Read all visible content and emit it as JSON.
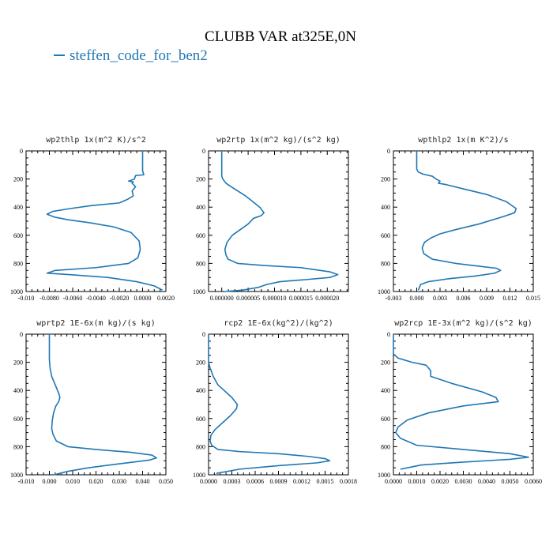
{
  "title": "CLUBB VAR at325E,0N",
  "legend": {
    "label": "steffen_code_for_ben2",
    "color": "#1f77b4"
  },
  "chart_data": [
    {
      "type": "line",
      "title": "wp2thlp  1x(m^2 K)/s^2",
      "xlim": [
        -0.01,
        0.002
      ],
      "ylim": [
        1000,
        0
      ],
      "yticks": [
        0,
        200,
        400,
        600,
        800,
        1000
      ],
      "xticks": [
        -0.01,
        -0.008,
        -0.006,
        -0.004,
        -0.002,
        0.0,
        0.002
      ],
      "xtick_labels": [
        "-0.010",
        "-0.0080",
        "-0.0060",
        "-0.0040",
        "-0.0020",
        "0.0000",
        "0.0020"
      ],
      "series": [
        {
          "x": [
            0.0,
            0.0,
            0.0001,
            -0.0006,
            -0.0007,
            -0.0012,
            -0.0008,
            -0.0009,
            -0.0006,
            -0.0009,
            -0.0008,
            -0.0013,
            -0.002,
            -0.0045,
            -0.0062,
            -0.0077,
            -0.0082,
            -0.0076,
            -0.0064,
            -0.0046,
            -0.0025,
            -0.001,
            -0.0003,
            -0.0002,
            -0.0004,
            -0.0012,
            -0.004,
            -0.0075,
            -0.0082,
            -0.0062,
            -0.003,
            -0.0005,
            0.001,
            0.0017
          ],
          "y": [
            0,
            140,
            170,
            175,
            200,
            215,
            220,
            230,
            255,
            285,
            320,
            345,
            370,
            390,
            410,
            430,
            450,
            470,
            490,
            510,
            540,
            580,
            640,
            700,
            760,
            800,
            830,
            850,
            870,
            880,
            900,
            930,
            960,
            990
          ]
        }
      ]
    },
    {
      "type": "line",
      "title": "wp2rtp  1x(m^2 kg)/(s^2 kg)",
      "xlim": [
        -2.5e-06,
        2.4e-05
      ],
      "ylim": [
        1000,
        0
      ],
      "yticks": [
        0,
        200,
        400,
        600,
        800,
        1000
      ],
      "xticks": [
        0.0,
        5e-06,
        1e-05,
        1.5e-05,
        2e-05
      ],
      "xtick_labels": [
        "0.000000",
        "0.000005",
        "0.000010",
        "0.000015",
        "0.000020"
      ],
      "series": [
        {
          "x": [
            0.0,
            0.0,
            2e-07,
            8e-07,
            2e-06,
            4.5e-06,
            7.2e-06,
            8e-06,
            7.5e-06,
            6e-06,
            5e-06,
            3.5e-06,
            2e-06,
            1e-06,
            6e-07,
            8e-07,
            1.2e-06,
            3e-06,
            8e-06,
            1.5e-05,
            2.05e-05,
            2.2e-05,
            2.05e-05,
            1.6e-05,
            1.1e-05,
            8.5e-06,
            7e-06,
            4e-06,
            5e-07
          ],
          "y": [
            0,
            180,
            200,
            230,
            260,
            320,
            400,
            440,
            460,
            480,
            520,
            560,
            600,
            650,
            700,
            740,
            770,
            800,
            815,
            830,
            860,
            880,
            900,
            915,
            930,
            950,
            970,
            990,
            1000
          ]
        }
      ]
    },
    {
      "type": "line",
      "title": "wpthlp2  1x(m K^2)/s",
      "xlim": [
        -0.003,
        0.015
      ],
      "ylim": [
        1000,
        0
      ],
      "yticks": [
        0,
        200,
        400,
        600,
        800,
        1000
      ],
      "xticks": [
        -0.003,
        0.0,
        0.003,
        0.006,
        0.009,
        0.012,
        0.015
      ],
      "xtick_labels": [
        "-0.003",
        "0.000",
        "0.003",
        "0.006",
        "0.009",
        "0.012",
        "0.015"
      ],
      "series": [
        {
          "x": [
            0.0,
            0.0,
            0.0002,
            0.0008,
            0.002,
            0.0025,
            0.003,
            0.0028,
            0.0038,
            0.006,
            0.009,
            0.0115,
            0.0128,
            0.0126,
            0.011,
            0.008,
            0.005,
            0.003,
            0.0018,
            0.001,
            0.0007,
            0.0009,
            0.002,
            0.005,
            0.008,
            0.0103,
            0.0108,
            0.01,
            0.0075,
            0.004,
            0.0015,
            0.0005,
            0.0002
          ],
          "y": [
            0,
            130,
            150,
            165,
            180,
            200,
            215,
            230,
            240,
            270,
            310,
            360,
            410,
            440,
            470,
            520,
            560,
            590,
            620,
            650,
            690,
            730,
            770,
            800,
            820,
            835,
            850,
            870,
            890,
            910,
            930,
            950,
            990
          ]
        }
      ]
    },
    {
      "type": "line",
      "title": "wprtp2  1E-6x(m kg)/(s kg)",
      "xlim": [
        -0.01,
        0.05
      ],
      "ylim": [
        1000,
        0
      ],
      "yticks": [
        0,
        200,
        400,
        600,
        800,
        1000
      ],
      "xticks": [
        -0.01,
        0.0,
        0.01,
        0.02,
        0.03,
        0.04,
        0.05
      ],
      "xtick_labels": [
        "-0.010",
        "0.000",
        "0.010",
        "0.020",
        "0.030",
        "0.040",
        "0.050"
      ],
      "series": [
        {
          "x": [
            0.0,
            0.0,
            0.0003,
            0.001,
            0.0025,
            0.004,
            0.0045,
            0.004,
            0.0028,
            0.0018,
            0.0012,
            0.001,
            0.0015,
            0.003,
            0.008,
            0.02,
            0.035,
            0.044,
            0.046,
            0.043,
            0.036,
            0.026,
            0.017,
            0.008,
            0.002
          ],
          "y": [
            0,
            180,
            240,
            300,
            360,
            420,
            450,
            480,
            510,
            560,
            620,
            670,
            710,
            760,
            800,
            820,
            840,
            860,
            880,
            895,
            910,
            930,
            950,
            975,
            1000
          ]
        }
      ]
    },
    {
      "type": "line",
      "title": "rcp2  1E-6x(kg^2)/(kg^2)",
      "xlim": [
        0.0,
        0.0018
      ],
      "ylim": [
        1000,
        0
      ],
      "yticks": [
        0,
        200,
        400,
        600,
        800,
        1000
      ],
      "xticks": [
        0.0,
        0.0003,
        0.0006,
        0.0009,
        0.0012,
        0.0015,
        0.0018
      ],
      "xtick_labels": [
        "0.0000",
        "0.0003",
        "0.0006",
        "0.0009",
        "0.0012",
        "0.0015",
        "0.0018"
      ],
      "series": [
        {
          "x": [
            0.0,
            0.0,
            2e-05,
            6e-05,
            0.00012,
            0.0002,
            0.0003,
            0.00037,
            0.00036,
            0.00028,
            0.00018,
            8e-05,
            3e-05,
            2e-05,
            4e-05,
            0.00012,
            0.0004,
            0.0009,
            0.0013,
            0.0015,
            0.00156,
            0.0014,
            0.0009,
            0.0004,
            0.0001
          ],
          "y": [
            0,
            200,
            240,
            300,
            360,
            400,
            450,
            500,
            530,
            580,
            630,
            680,
            720,
            760,
            790,
            820,
            835,
            850,
            870,
            885,
            900,
            915,
            935,
            960,
            990
          ]
        }
      ]
    },
    {
      "type": "line",
      "title": "wp2rcp  1E-3x(m^2 kg)/(s^2 kg)",
      "xlim": [
        0.0,
        0.006
      ],
      "ylim": [
        1000,
        0
      ],
      "yticks": [
        0,
        200,
        400,
        600,
        800,
        1000
      ],
      "xticks": [
        0.0,
        0.001,
        0.002,
        0.003,
        0.004,
        0.005,
        0.006
      ],
      "xtick_labels": [
        "0.0000",
        "0.0010",
        "0.0020",
        "0.0030",
        "0.0040",
        "0.0050",
        "0.0060"
      ],
      "series": [
        {
          "x": [
            0.0,
            0.0,
            0.0002,
            0.0008,
            0.0014,
            0.0016,
            0.0016,
            0.0025,
            0.0038,
            0.0044,
            0.0045,
            0.003,
            0.0015,
            0.0006,
            0.0002,
            0.0001,
            0.0003,
            0.001,
            0.003,
            0.005,
            0.0058,
            0.005,
            0.003,
            0.0012,
            0.0003
          ],
          "y": [
            0,
            140,
            170,
            200,
            220,
            260,
            300,
            350,
            410,
            450,
            480,
            510,
            560,
            610,
            660,
            700,
            740,
            790,
            820,
            850,
            875,
            890,
            910,
            930,
            960
          ]
        }
      ]
    }
  ]
}
